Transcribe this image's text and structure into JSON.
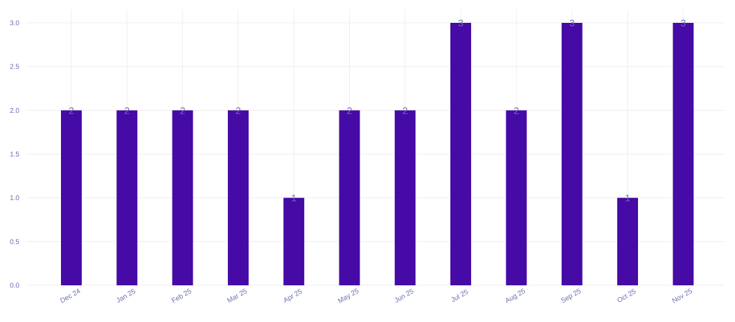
{
  "chart_data": {
    "type": "bar",
    "title": "",
    "xlabel": "",
    "ylabel": "",
    "categories": [
      "Dec 24",
      "Jan 25",
      "Feb 25",
      "Mar 25",
      "Apr 25",
      "May 25",
      "Jun 25",
      "Jul 25",
      "Aug 25",
      "Sep 25",
      "Oct 25",
      "Nov 25"
    ],
    "values": [
      2,
      2,
      2,
      2,
      1,
      2,
      2,
      3,
      2,
      3,
      1,
      3
    ],
    "ylim": [
      0,
      3.0
    ],
    "yticks": [
      "0.0",
      "0.5",
      "1.0",
      "1.5",
      "2.0",
      "2.5",
      "3.0"
    ],
    "grid": true,
    "legend": "none",
    "colors": {
      "bar": "#460aa6",
      "label": "#6b72b0",
      "grid": "#eeeeee"
    }
  }
}
